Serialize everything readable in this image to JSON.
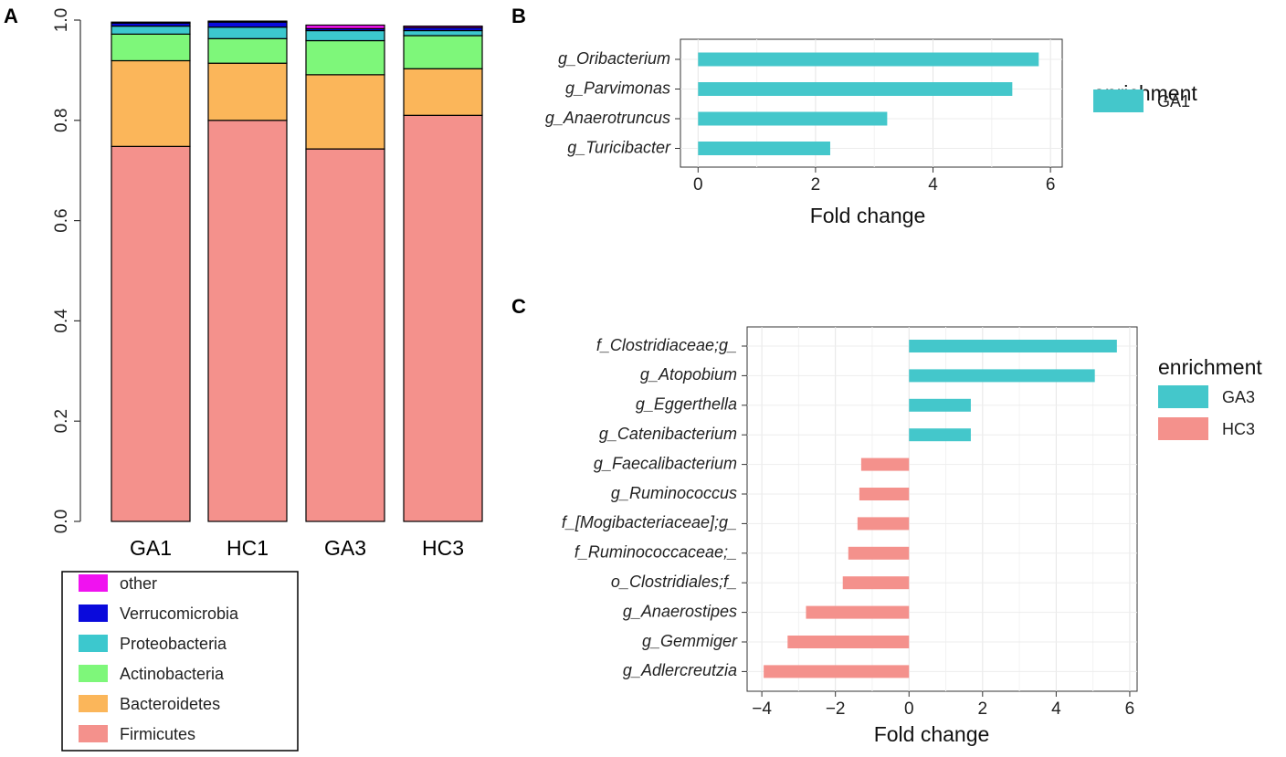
{
  "colors": {
    "firmicutes": "#F4918C",
    "bacteroidetes": "#FBB65A",
    "actinobacteria": "#7EF77A",
    "proteobacteria": "#3CC8CE",
    "verrucomicrobia": "#0A0ADC",
    "other": "#F012F0",
    "ga": "#44C7CB",
    "hc": "#F4918C"
  },
  "panels": {
    "a": "A",
    "b": "B",
    "c": "C"
  },
  "chart_data": [
    {
      "id": "A",
      "type": "bar",
      "stacked": true,
      "categories": [
        "GA1",
        "HC1",
        "GA3",
        "HC3"
      ],
      "ylim": [
        0,
        1
      ],
      "yticks": [
        "0.0",
        "0.2",
        "0.4",
        "0.6",
        "0.8",
        "1.0"
      ],
      "series": [
        {
          "name": "Firmicutes",
          "color": "#F4918C",
          "values": [
            0.748,
            0.8,
            0.743,
            0.81
          ]
        },
        {
          "name": "Bacteroidetes",
          "color": "#FBB65A",
          "values": [
            0.171,
            0.114,
            0.148,
            0.093
          ]
        },
        {
          "name": "Actinobacteria",
          "color": "#7EF77A",
          "values": [
            0.053,
            0.049,
            0.068,
            0.066
          ]
        },
        {
          "name": "Proteobacteria",
          "color": "#3CC8CE",
          "values": [
            0.016,
            0.023,
            0.02,
            0.01
          ]
        },
        {
          "name": "Verrucomicrobia",
          "color": "#0A0ADC",
          "values": [
            0.006,
            0.01,
            0.004,
            0.006
          ]
        },
        {
          "name": "other",
          "color": "#F012F0",
          "values": [
            0.002,
            0.002,
            0.007,
            0.003
          ]
        }
      ],
      "legend": [
        "other",
        "Verrucomicrobia",
        "Proteobacteria",
        "Actinobacteria",
        "Bacteroidetes",
        "Firmicutes"
      ],
      "legend_position": "bottom"
    },
    {
      "id": "B",
      "type": "bar",
      "orientation": "horizontal",
      "categories": [
        "g_Oribacterium",
        "g_Parvimonas",
        "g_Anaerotruncus",
        "g_Turicibacter"
      ],
      "values": [
        5.8,
        5.35,
        3.22,
        2.25
      ],
      "groups": [
        "GA1",
        "GA1",
        "GA1",
        "GA1"
      ],
      "xlim": [
        -0.3,
        6.2
      ],
      "xticks": [
        0,
        2,
        4,
        6
      ],
      "xlabel": "Fold change",
      "legend_title": "enrichment",
      "legend": [
        "GA1"
      ],
      "legend_position": "right"
    },
    {
      "id": "C",
      "type": "bar",
      "orientation": "horizontal",
      "categories": [
        "f_Clostridiaceae;g_",
        "g_Atopobium",
        "g_Eggerthella",
        "g_Catenibacterium",
        "g_Faecalibacterium",
        "g_Ruminococcus",
        "f_[Mogibacteriaceae];g_",
        "f_Ruminococcaceae;_",
        "o_Clostridiales;f_",
        "g_Anaerostipes",
        "g_Gemmiger",
        "g_Adlercreutzia"
      ],
      "values": [
        5.65,
        5.05,
        1.68,
        1.68,
        -1.3,
        -1.35,
        -1.4,
        -1.65,
        -1.8,
        -2.8,
        -3.3,
        -3.95
      ],
      "groups": [
        "GA3",
        "GA3",
        "GA3",
        "GA3",
        "HC3",
        "HC3",
        "HC3",
        "HC3",
        "HC3",
        "HC3",
        "HC3",
        "HC3"
      ],
      "xlim": [
        -4.4,
        6.2
      ],
      "xticks": [
        -4,
        -2,
        0,
        2,
        4,
        6
      ],
      "xlabel": "Fold change",
      "legend_title": "enrichment",
      "legend": [
        "GA3",
        "HC3"
      ],
      "legend_position": "right"
    }
  ]
}
